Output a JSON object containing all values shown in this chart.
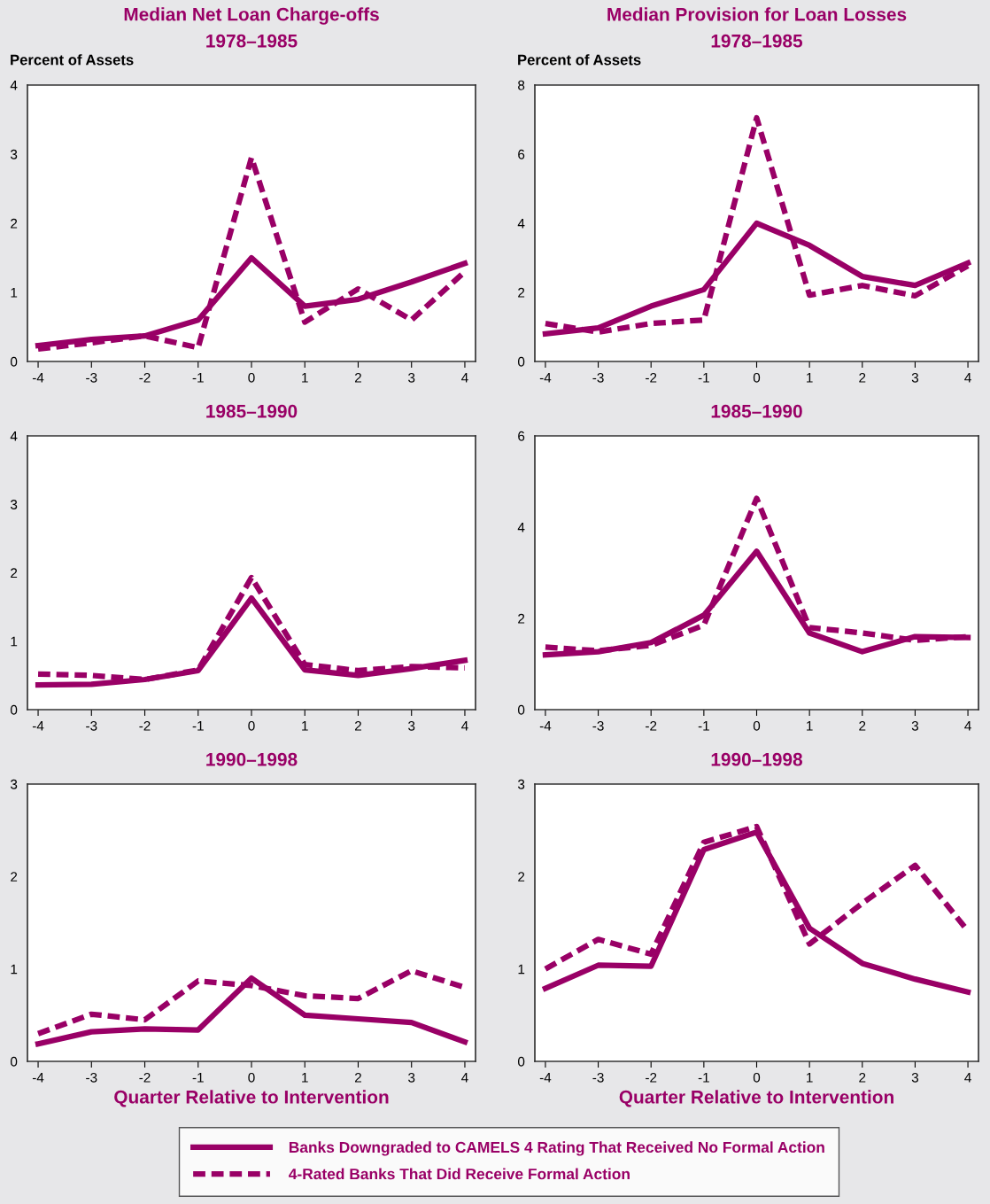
{
  "chart_data": [
    {
      "type": "line",
      "title": "Median Net Loan Charge-offs",
      "subtitle": "1978–1985",
      "ylabel": "Percent of Assets",
      "xlim": [
        -4.2,
        4.2
      ],
      "xticks": [
        -4,
        -3,
        -2,
        -1,
        0,
        1,
        2,
        3,
        4
      ],
      "ylim": [
        0,
        4
      ],
      "yticks": [
        0,
        1,
        2,
        3,
        4
      ],
      "grid": false,
      "legend": "bottom",
      "marker": "none",
      "x": [
        -4,
        -3,
        -2,
        -1,
        0,
        1,
        2,
        3,
        4
      ],
      "series": [
        {
          "name": "Banks Downgraded to CAMELS 4 Rating That Received No Formal Action",
          "color": "#990066",
          "line_style": "solid",
          "values": [
            0.23,
            0.32,
            0.37,
            0.6,
            1.5,
            0.8,
            0.9,
            1.15,
            1.42
          ]
        },
        {
          "name": "4-Rated Banks That Did Receive Formal Action",
          "color": "#990066",
          "line_style": "dashed",
          "values": [
            0.18,
            0.27,
            0.37,
            0.2,
            2.95,
            0.57,
            1.05,
            0.6,
            1.3
          ]
        }
      ]
    },
    {
      "type": "line",
      "title": "Median Provision for Loan Losses",
      "subtitle": "1978–1985",
      "ylabel": "Percent of Assets",
      "xlim": [
        -4.2,
        4.2
      ],
      "xticks": [
        -4,
        -3,
        -2,
        -1,
        0,
        1,
        2,
        3,
        4
      ],
      "ylim": [
        0,
        8
      ],
      "yticks": [
        0,
        2,
        4,
        6,
        8
      ],
      "grid": false,
      "marker": "none",
      "x": [
        -4,
        -3,
        -2,
        -1,
        0,
        1,
        2,
        3,
        4
      ],
      "series": [
        {
          "color": "#990066",
          "line_style": "solid",
          "values": [
            0.8,
            0.97,
            1.6,
            2.08,
            4.0,
            3.36,
            2.46,
            2.2,
            2.85
          ]
        },
        {
          "color": "#990066",
          "line_style": "dashed",
          "values": [
            1.1,
            0.85,
            1.1,
            1.2,
            7.05,
            1.92,
            2.2,
            1.9,
            2.77
          ]
        }
      ]
    },
    {
      "type": "line",
      "title": "1985–1990",
      "xlim": [
        -4.2,
        4.2
      ],
      "xticks": [
        -4,
        -3,
        -2,
        -1,
        0,
        1,
        2,
        3,
        4
      ],
      "ylim": [
        0,
        4
      ],
      "yticks": [
        0,
        1,
        2,
        3,
        4
      ],
      "grid": false,
      "marker": "none",
      "x": [
        -4,
        -3,
        -2,
        -1,
        0,
        1,
        2,
        3,
        4
      ],
      "series": [
        {
          "color": "#990066",
          "line_style": "solid",
          "values": [
            0.36,
            0.37,
            0.44,
            0.57,
            1.63,
            0.58,
            0.5,
            0.6,
            0.72
          ]
        },
        {
          "color": "#990066",
          "line_style": "dashed",
          "values": [
            0.52,
            0.5,
            0.44,
            0.58,
            1.93,
            0.66,
            0.57,
            0.63,
            0.61
          ]
        }
      ]
    },
    {
      "type": "line",
      "title": "1985–1990",
      "xlim": [
        -4.2,
        4.2
      ],
      "xticks": [
        -4,
        -3,
        -2,
        -1,
        0,
        1,
        2,
        3,
        4
      ],
      "ylim": [
        0,
        6
      ],
      "yticks": [
        0,
        2,
        4,
        6
      ],
      "grid": false,
      "marker": "none",
      "x": [
        -4,
        -3,
        -2,
        -1,
        0,
        1,
        2,
        3,
        4
      ],
      "series": [
        {
          "color": "#990066",
          "line_style": "solid",
          "values": [
            1.2,
            1.27,
            1.47,
            2.07,
            3.47,
            1.68,
            1.27,
            1.6,
            1.58
          ]
        },
        {
          "color": "#990066",
          "line_style": "dashed",
          "values": [
            1.37,
            1.29,
            1.41,
            1.85,
            4.63,
            1.8,
            1.68,
            1.52,
            1.6
          ]
        }
      ]
    },
    {
      "type": "line",
      "title": "1990–1998",
      "xlabel": "Quarter Relative to Intervention",
      "xlim": [
        -4.2,
        4.2
      ],
      "xticks": [
        -4,
        -3,
        -2,
        -1,
        0,
        1,
        2,
        3,
        4
      ],
      "ylim": [
        0,
        3
      ],
      "yticks": [
        0,
        1,
        2,
        3
      ],
      "grid": false,
      "marker": "none",
      "x": [
        -4,
        -3,
        -2,
        -1,
        0,
        1,
        2,
        3,
        4
      ],
      "series": [
        {
          "color": "#990066",
          "line_style": "solid",
          "values": [
            0.19,
            0.32,
            0.35,
            0.34,
            0.9,
            0.5,
            0.46,
            0.42,
            0.21
          ]
        },
        {
          "color": "#990066",
          "line_style": "dashed",
          "values": [
            0.3,
            0.51,
            0.45,
            0.87,
            0.82,
            0.71,
            0.68,
            0.98,
            0.8
          ]
        }
      ]
    },
    {
      "type": "line",
      "title": "1990–1998",
      "xlabel": "Quarter Relative to Intervention",
      "xlim": [
        -4.2,
        4.2
      ],
      "xticks": [
        -4,
        -3,
        -2,
        -1,
        0,
        1,
        2,
        3,
        4
      ],
      "ylim": [
        0,
        3
      ],
      "yticks": [
        0,
        1,
        2,
        3
      ],
      "grid": false,
      "marker": "none",
      "x": [
        -4,
        -3,
        -2,
        -1,
        0,
        1,
        2,
        3,
        4
      ],
      "series": [
        {
          "color": "#990066",
          "line_style": "solid",
          "values": [
            0.79,
            1.04,
            1.03,
            2.29,
            2.48,
            1.44,
            1.06,
            0.89,
            0.75
          ]
        },
        {
          "color": "#990066",
          "line_style": "dashed",
          "values": [
            1.0,
            1.32,
            1.16,
            2.37,
            2.54,
            1.27,
            1.71,
            2.12,
            1.41
          ]
        }
      ]
    }
  ]
}
